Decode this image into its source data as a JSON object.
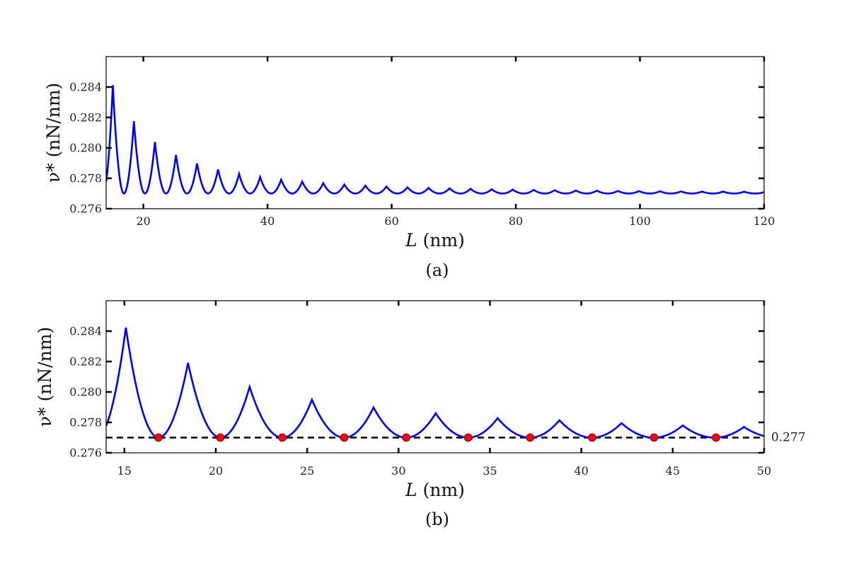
{
  "chart_data": [
    {
      "id": "a",
      "type": "line",
      "caption": "(a)",
      "xlabel": "L (nm)",
      "ylabel": "ν* (nN/nm)",
      "xlim": [
        14,
        120
      ],
      "ylim": [
        0.276,
        0.286
      ],
      "xticks": [
        20,
        40,
        60,
        80,
        100,
        120
      ],
      "yticks": [
        0.276,
        0.278,
        0.28,
        0.282,
        0.284
      ],
      "ytick_labels": [
        "0.276",
        "0.278",
        "0.280",
        "0.282",
        "0.284"
      ],
      "grid": false,
      "line_color": "#0000ff",
      "minimum_value": 0.277,
      "start_value": 0.2778,
      "peaks": [
        {
          "x": 15.08,
          "y": 0.28412
        },
        {
          "x": 18.47,
          "y": 0.28175
        },
        {
          "x": 21.86,
          "y": 0.28039
        },
        {
          "x": 25.25,
          "y": 0.27954
        },
        {
          "x": 28.64,
          "y": 0.27898
        },
        {
          "x": 32.03,
          "y": 0.27858
        },
        {
          "x": 35.42,
          "y": 0.27829
        },
        {
          "x": 38.81,
          "y": 0.27808
        },
        {
          "x": 42.2,
          "y": 0.27791
        },
        {
          "x": 45.59,
          "y": 0.27778
        },
        {
          "x": 48.98,
          "y": 0.27768
        },
        {
          "x": 52.37,
          "y": 0.27759
        },
        {
          "x": 55.76,
          "y": 0.27752
        },
        {
          "x": 59.15,
          "y": 0.27746
        },
        {
          "x": 62.54,
          "y": 0.27741
        },
        {
          "x": 65.93,
          "y": 0.27737
        },
        {
          "x": 69.32,
          "y": 0.27734
        },
        {
          "x": 72.71,
          "y": 0.27731
        },
        {
          "x": 76.1,
          "y": 0.27728
        },
        {
          "x": 79.49,
          "y": 0.27726
        },
        {
          "x": 82.88,
          "y": 0.27724
        },
        {
          "x": 86.27,
          "y": 0.27722
        },
        {
          "x": 89.66,
          "y": 0.2772
        },
        {
          "x": 93.05,
          "y": 0.27719
        },
        {
          "x": 96.44,
          "y": 0.27717
        },
        {
          "x": 99.83,
          "y": 0.27716
        },
        {
          "x": 103.22,
          "y": 0.27715
        },
        {
          "x": 106.61,
          "y": 0.27714
        },
        {
          "x": 110.0,
          "y": 0.27713
        },
        {
          "x": 113.39,
          "y": 0.27713
        },
        {
          "x": 116.78,
          "y": 0.27712
        }
      ]
    },
    {
      "id": "b",
      "type": "line",
      "caption": "(b)",
      "xlabel": "L (nm)",
      "ylabel": "ν* (nN/nm)",
      "xlim": [
        14,
        50
      ],
      "ylim": [
        0.276,
        0.286
      ],
      "xticks": [
        15,
        20,
        25,
        30,
        35,
        40,
        45,
        50
      ],
      "yticks": [
        0.276,
        0.278,
        0.28,
        0.282,
        0.284
      ],
      "ytick_labels": [
        "0.276",
        "0.278",
        "0.280",
        "0.282",
        "0.284"
      ],
      "grid": false,
      "line_color": "#0000ff",
      "minimum_value": 0.277,
      "start_value": 0.2778,
      "peaks": [
        {
          "x": 15.08,
          "y": 0.28423
        },
        {
          "x": 18.48,
          "y": 0.28191
        },
        {
          "x": 21.85,
          "y": 0.28033
        },
        {
          "x": 25.26,
          "y": 0.27949
        },
        {
          "x": 28.63,
          "y": 0.27898
        },
        {
          "x": 32.03,
          "y": 0.2786
        },
        {
          "x": 35.42,
          "y": 0.27828
        },
        {
          "x": 38.8,
          "y": 0.27814
        },
        {
          "x": 42.2,
          "y": 0.27795
        },
        {
          "x": 45.55,
          "y": 0.2778
        },
        {
          "x": 48.9,
          "y": 0.2777
        }
      ],
      "reference_line": {
        "y": 0.277,
        "label": "0.277",
        "style": "dashed",
        "color": "#000000"
      },
      "markers": {
        "color": "#ff0000",
        "points": [
          {
            "x": 16.86,
            "y": 0.277
          },
          {
            "x": 20.25,
            "y": 0.277
          },
          {
            "x": 23.64,
            "y": 0.277
          },
          {
            "x": 27.03,
            "y": 0.277
          },
          {
            "x": 30.42,
            "y": 0.277
          },
          {
            "x": 33.81,
            "y": 0.277
          },
          {
            "x": 37.2,
            "y": 0.277
          },
          {
            "x": 40.59,
            "y": 0.277
          },
          {
            "x": 43.98,
            "y": 0.277
          },
          {
            "x": 47.37,
            "y": 0.277
          }
        ]
      }
    }
  ]
}
